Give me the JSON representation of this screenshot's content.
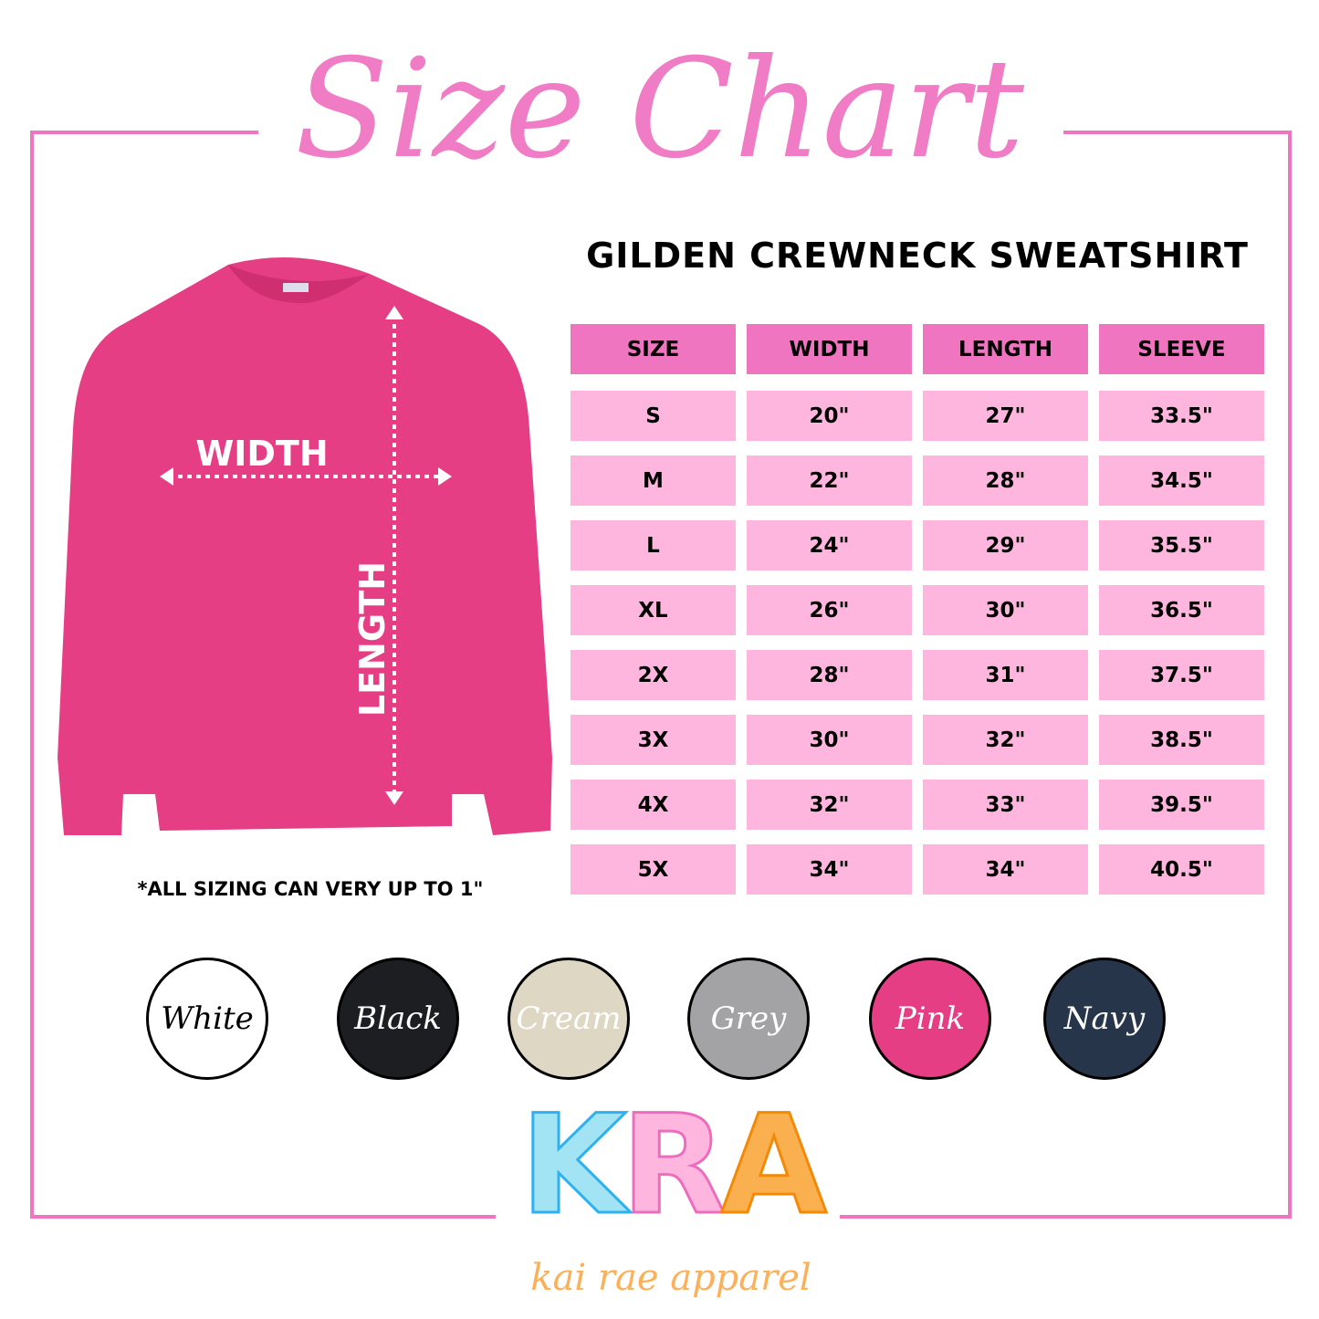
{
  "title": "Size Chart",
  "subtitle": "GILDEN CREWNECK SWEATSHIRT",
  "colors": {
    "accent": "#f075c0",
    "header_cell": "#f075c0",
    "row_cell": "#ffb6de",
    "sweatshirt": "#e63e84"
  },
  "garment": {
    "width_label": "WIDTH",
    "length_label": "LENGTH"
  },
  "table": {
    "headers": [
      "SIZE",
      "WIDTH",
      "LENGTH",
      "SLEEVE"
    ],
    "rows": [
      [
        "S",
        "20\"",
        "27\"",
        "33.5\""
      ],
      [
        "M",
        "22\"",
        "28\"",
        "34.5\""
      ],
      [
        "L",
        "24\"",
        "29\"",
        "35.5\""
      ],
      [
        "XL",
        "26\"",
        "30\"",
        "36.5\""
      ],
      [
        "2X",
        "28\"",
        "31\"",
        "37.5\""
      ],
      [
        "3X",
        "30\"",
        "32\"",
        "38.5\""
      ],
      [
        "4X",
        "32\"",
        "33\"",
        "39.5\""
      ],
      [
        "5X",
        "34\"",
        "34\"",
        "40.5\""
      ]
    ]
  },
  "note": "*ALL SIZING CAN VERY UP TO 1\"",
  "swatches": [
    {
      "label": "White",
      "color": "#ffffff",
      "text": "#000000"
    },
    {
      "label": "Black",
      "color": "#1d1e22",
      "text": "#ffffff"
    },
    {
      "label": "Cream",
      "color": "#ddd7c3",
      "text": "#ffffff"
    },
    {
      "label": "Grey",
      "color": "#a3a3a6",
      "text": "#ffffff"
    },
    {
      "label": "Pink",
      "color": "#e63e84",
      "text": "#ffffff"
    },
    {
      "label": "Navy",
      "color": "#263549",
      "text": "#ffffff"
    }
  ],
  "logo": {
    "letters": [
      "K",
      "R",
      "A"
    ],
    "letter_colors": [
      "#a3e4f4",
      "#ffb6de",
      "#fbb04f"
    ],
    "outline_colors": [
      "#2eb1f0",
      "#ec6dbd",
      "#f28a07"
    ],
    "tagline": "kai rae apparel"
  }
}
